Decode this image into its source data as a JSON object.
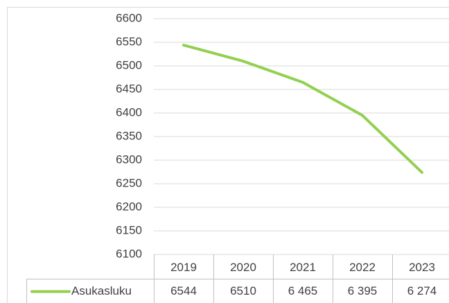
{
  "chart_data": {
    "type": "line",
    "categories": [
      "2019",
      "2020",
      "2021",
      "2022",
      "2023"
    ],
    "series": [
      {
        "name": "Asukasluku",
        "color": "#92d050",
        "values": [
          6544,
          6510,
          6465,
          6395,
          6274
        ],
        "value_labels": [
          "6544",
          "6510",
          "6 465",
          "6 395",
          "6 274"
        ]
      }
    ],
    "ylim": [
      6100,
      6600
    ],
    "yticks": [
      6100,
      6150,
      6200,
      6250,
      6300,
      6350,
      6400,
      6450,
      6500,
      6550,
      6600
    ],
    "grid": true,
    "data_table": true
  }
}
